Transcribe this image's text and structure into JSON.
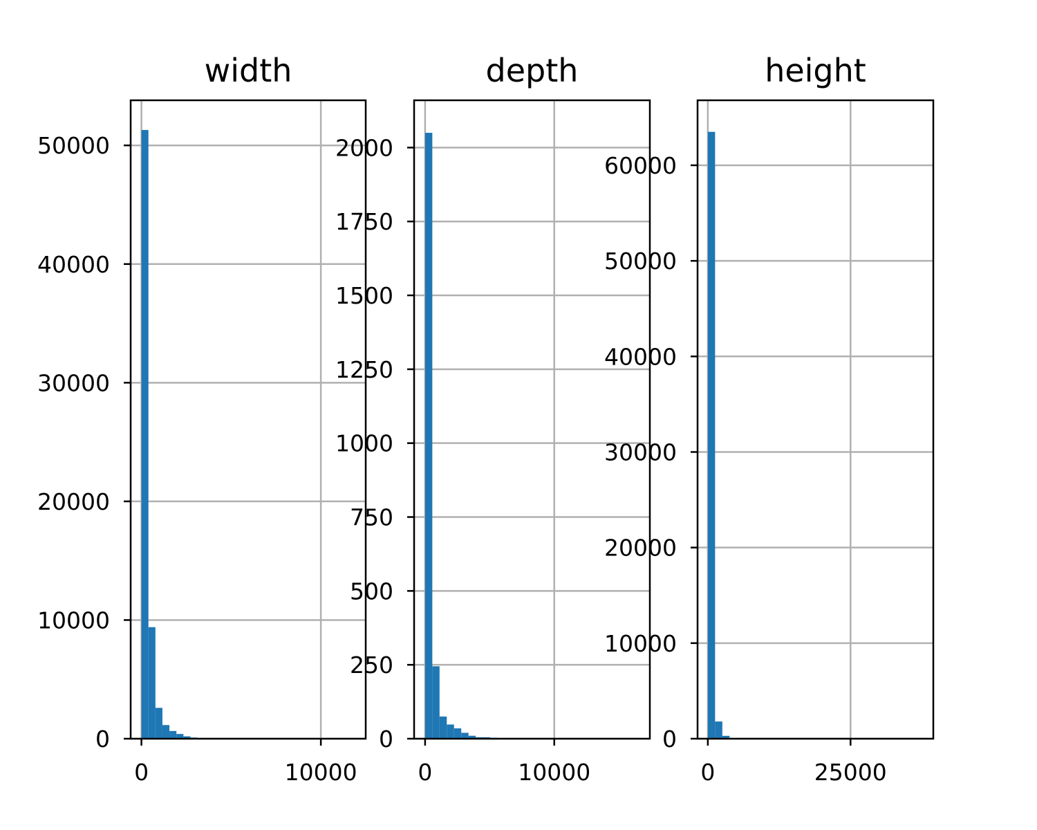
{
  "chart_data": [
    {
      "type": "bar",
      "title": "width",
      "grid": true,
      "xlim": [
        -600,
        12500
      ],
      "ylim": [
        0,
        53800
      ],
      "xticks": [
        0,
        10000
      ],
      "yticks": [
        0,
        10000,
        20000,
        30000,
        40000,
        50000
      ],
      "bin_width": 390,
      "bin_start": 0,
      "values": [
        51300,
        9400,
        2600,
        1150,
        650,
        400,
        200,
        100,
        50,
        30,
        20,
        10,
        8,
        5,
        5,
        3,
        3,
        2,
        2,
        1,
        1,
        1,
        1,
        1,
        1,
        1,
        1,
        1,
        1,
        1
      ],
      "color": "#1f77b4"
    },
    {
      "type": "bar",
      "title": "depth",
      "grid": true,
      "xlim": [
        -850,
        17400
      ],
      "ylim": [
        0,
        2160
      ],
      "xticks": [
        0,
        10000
      ],
      "yticks": [
        0,
        250,
        500,
        750,
        1000,
        1250,
        1500,
        1750,
        2000
      ],
      "bin_width": 560,
      "bin_start": 0,
      "values": [
        2050,
        245,
        75,
        48,
        35,
        20,
        10,
        5,
        5,
        3,
        2,
        2,
        1,
        1,
        1,
        1,
        1,
        1,
        1,
        1,
        1,
        1,
        1,
        1,
        1,
        1,
        1,
        1,
        1,
        1
      ],
      "color": "#1f77b4"
    },
    {
      "type": "bar",
      "title": "height",
      "grid": true,
      "xlim": [
        -1800,
        39500
      ],
      "ylim": [
        0,
        66800
      ],
      "xticks": [
        0,
        25000
      ],
      "yticks": [
        0,
        10000,
        20000,
        30000,
        40000,
        50000,
        60000
      ],
      "bin_width": 1270,
      "bin_start": 0,
      "values": [
        63500,
        1800,
        300,
        60,
        20,
        10,
        5,
        3,
        2,
        1,
        1,
        1,
        1,
        1,
        1,
        1,
        1,
        1,
        1,
        1,
        1,
        1,
        1,
        1,
        1,
        1,
        1,
        1,
        1,
        1
      ],
      "color": "#1f77b4"
    }
  ]
}
